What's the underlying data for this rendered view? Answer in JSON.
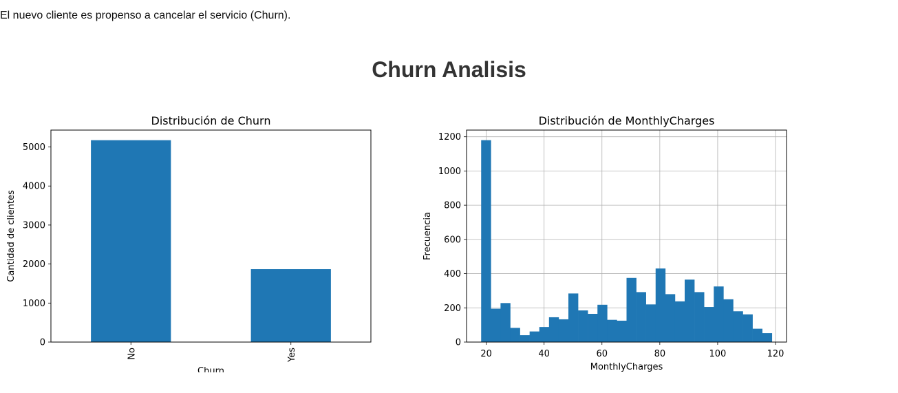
{
  "page": {
    "note": "El nuevo cliente es propenso a cancelar el servicio (Churn).",
    "title": "Churn Analisis"
  },
  "chart_data": [
    {
      "type": "bar",
      "title": "Distribución de Churn",
      "xlabel": "Churn",
      "ylabel": "Cantidad de clientes",
      "categories": [
        "No",
        "Yes"
      ],
      "values": [
        5174,
        1869
      ],
      "ylim": [
        0,
        5433
      ],
      "yticks": [
        0,
        1000,
        2000,
        3000,
        4000,
        5000
      ],
      "grid": false,
      "color": "#1f77b4"
    },
    {
      "type": "bar",
      "title": "Distribución de MonthlyCharges",
      "xlabel": "MonthlyCharges",
      "ylabel": "Frecuencia",
      "bin_edges": [
        18.25,
        21.6,
        24.95,
        28.3,
        31.65,
        35.0,
        38.35,
        41.7,
        45.05,
        48.4,
        51.75,
        55.1,
        58.45,
        61.8,
        65.15,
        68.5,
        71.85,
        75.2,
        78.55,
        81.9,
        85.25,
        88.6,
        91.95,
        95.3,
        98.65,
        102.0,
        105.35,
        108.7,
        112.05,
        115.4,
        118.75
      ],
      "values": [
        1180,
        195,
        228,
        83,
        40,
        62,
        88,
        145,
        133,
        284,
        185,
        165,
        218,
        130,
        125,
        375,
        292,
        220,
        430,
        280,
        238,
        365,
        292,
        205,
        325,
        250,
        180,
        162,
        78,
        52
      ],
      "xlim": [
        13.2,
        123.8
      ],
      "ylim": [
        0,
        1239
      ],
      "xticks": [
        20,
        40,
        60,
        80,
        100,
        120
      ],
      "yticks": [
        0,
        200,
        400,
        600,
        800,
        1000,
        1200
      ],
      "grid": true,
      "color": "#1f77b4"
    }
  ]
}
